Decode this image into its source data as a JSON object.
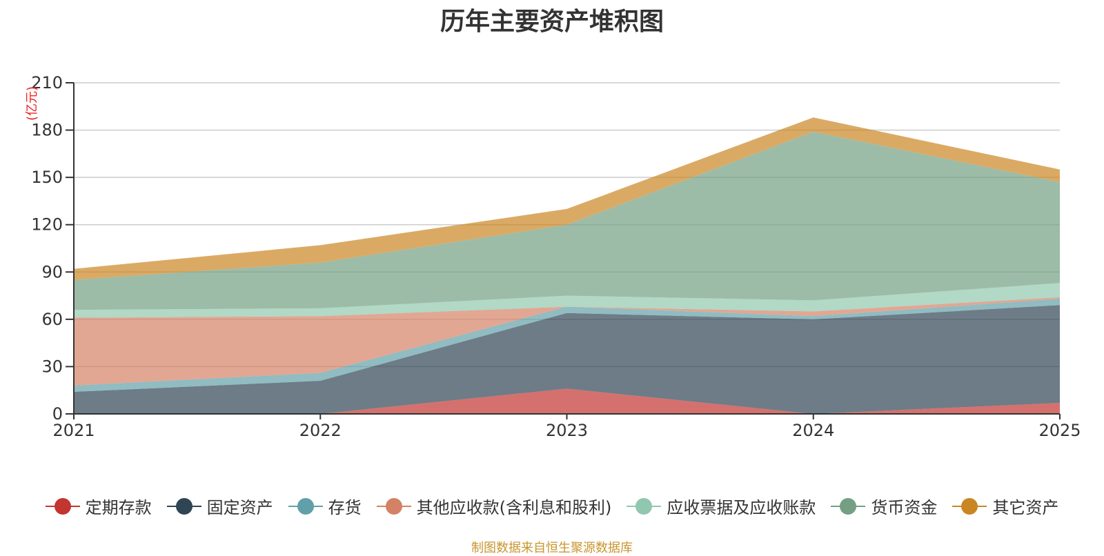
{
  "chart_data": {
    "type": "area",
    "stacked": true,
    "title": "历年主要资产堆积图",
    "ylabel": "(亿元)",
    "xlabel": "",
    "ylim": [
      0,
      210
    ],
    "yticks": [
      0,
      30,
      60,
      90,
      120,
      150,
      180,
      210
    ],
    "categories": [
      "2021",
      "2022",
      "2023",
      "2024",
      "2025"
    ],
    "grid": true,
    "legend_position": "bottom",
    "series": [
      {
        "name": "定期存款",
        "color": "#c23531",
        "values": [
          0,
          0,
          16,
          0,
          7
        ]
      },
      {
        "name": "固定资产",
        "color": "#2f4554",
        "values": [
          14,
          21,
          48,
          60,
          62
        ]
      },
      {
        "name": "存货",
        "color": "#61a0a8",
        "values": [
          4,
          5,
          4,
          2,
          4
        ]
      },
      {
        "name": "其他应收款(含利息和股利)",
        "color": "#d48265",
        "values": [
          43,
          36,
          0,
          3,
          1
        ]
      },
      {
        "name": "应收票据及应收账款",
        "color": "#91c7ae",
        "values": [
          5,
          5,
          7,
          7,
          9
        ]
      },
      {
        "name": "货币资金",
        "color": "#749f83",
        "values": [
          19,
          29,
          45,
          107,
          64
        ]
      },
      {
        "name": "其它资产",
        "color": "#ca8622",
        "values": [
          7,
          11,
          10,
          9,
          8
        ]
      }
    ],
    "source_note": "制图数据来自恒生聚源数据库"
  }
}
